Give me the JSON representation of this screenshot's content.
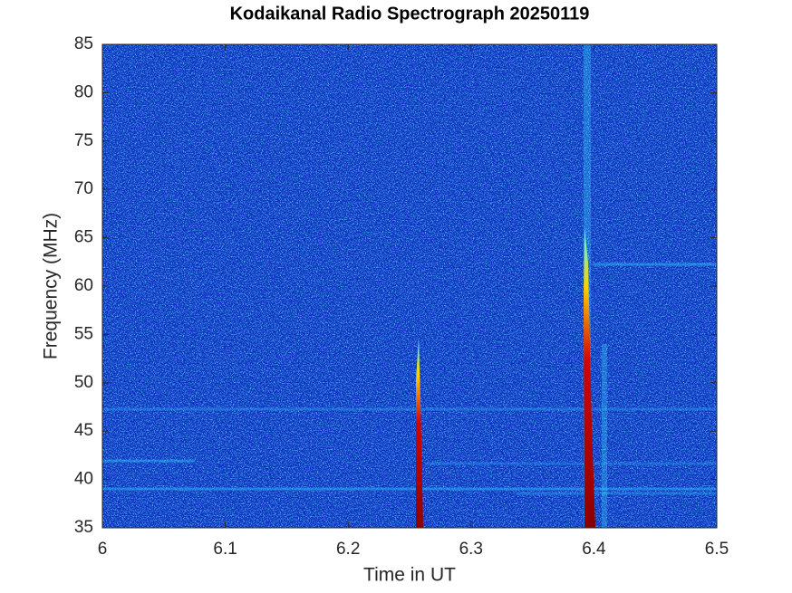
{
  "chart_data": {
    "type": "spectrogram",
    "title": "Kodaikanal Radio Spectrograph  20250119",
    "xlabel": "Time in UT",
    "ylabel": "Frequency (MHz)",
    "xlim": [
      6,
      6.5
    ],
    "xticks": [
      6,
      6.1,
      6.2,
      6.3,
      6.4,
      6.5
    ],
    "ylim": [
      35,
      85
    ],
    "yticks": [
      35,
      40,
      45,
      50,
      55,
      60,
      65,
      70,
      75,
      80,
      85
    ]
  }
}
